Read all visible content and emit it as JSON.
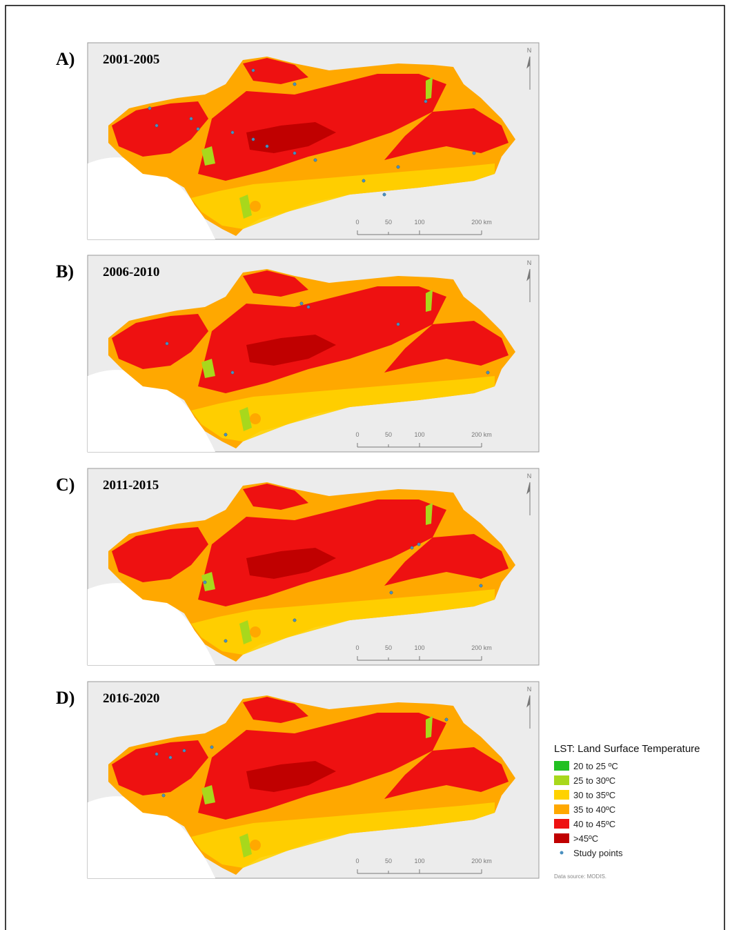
{
  "panels": [
    {
      "label": "A)",
      "period": "2001-2005",
      "north": "N",
      "scale_labels": [
        "0",
        "50",
        "100",
        "200 km"
      ]
    },
    {
      "label": "B)",
      "period": "2006-2010",
      "north": "N",
      "scale_labels": [
        "0",
        "50",
        "100",
        "200 km"
      ]
    },
    {
      "label": "C)",
      "period": "2011-2015",
      "north": "N",
      "scale_labels": [
        "0",
        "50",
        "100",
        "200 km"
      ]
    },
    {
      "label": "D)",
      "period": "2016-2020",
      "north": "N",
      "scale_labels": [
        "0",
        "50",
        "100",
        "200 km"
      ]
    }
  ],
  "legend": {
    "title": "LST: Land Surface Temperature",
    "items": [
      {
        "label": "20 to 25 ºC",
        "color": "#22c022"
      },
      {
        "label": "25 to 30ºC",
        "color": "#a8d81c"
      },
      {
        "label": "30 to 35ºC",
        "color": "#ffd200"
      },
      {
        "label": "35 to 40ºC",
        "color": "#ffa800"
      },
      {
        "label": "40 to 45ºC",
        "color": "#ee1111"
      },
      {
        "label": ">45ºC",
        "color": "#c00000"
      }
    ],
    "points": {
      "label": "Study points",
      "color": "#4a90c0"
    }
  },
  "source": "Data source: MODIS."
}
